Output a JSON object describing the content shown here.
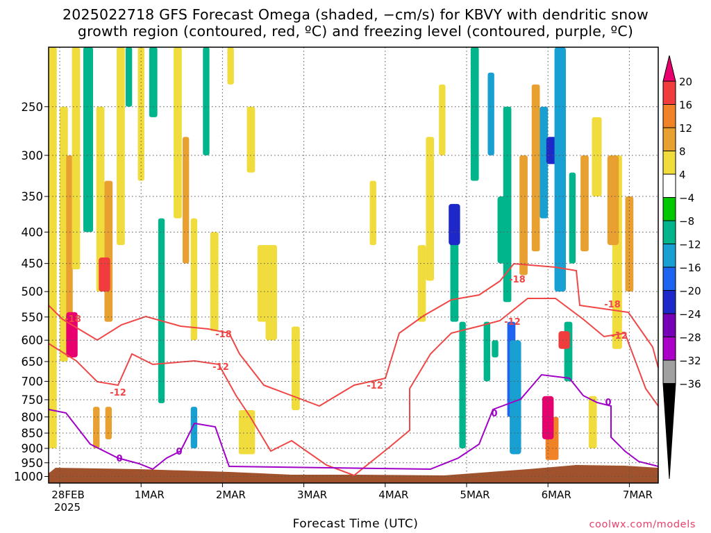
{
  "title": {
    "line1": "2025022718 GFS Forecast Omega (shaded, −cm/s) for KBVY with dendritic snow",
    "line2": "growth region (contoured, red, ºC) and freezing level (contoured, purple, ºC)"
  },
  "credit": "coolwx.com/models",
  "chart_data": {
    "type": "heatmap",
    "title": "2025022718 GFS Forecast Omega (shaded, −cm/s) for KBVY with dendritic snow growth region (contoured, red, ºC) and freezing level (contoured, purple, ºC)",
    "xlabel": "Forecast Time (UTC)",
    "ylabel": "",
    "x_ticks": [
      "28FEB",
      "1MAR",
      "2MAR",
      "3MAR",
      "4MAR",
      "5MAR",
      "6MAR",
      "7MAR"
    ],
    "x_tick_sublabel": "2025",
    "x_range_days": [
      -0.25,
      7.1
    ],
    "y_ticks": [
      250,
      300,
      350,
      400,
      450,
      500,
      550,
      600,
      650,
      700,
      750,
      800,
      850,
      900,
      950,
      1000
    ],
    "y_range_hpa": [
      200,
      1025
    ],
    "y_scale": "pressure (log)",
    "grid": "dotted",
    "colorbar": {
      "levels": [
        20,
        16,
        12,
        8,
        4,
        -4,
        -8,
        -12,
        -16,
        -20,
        -24,
        -28,
        -32,
        -36
      ],
      "colors": [
        "#e8006e",
        "#f03c3c",
        "#f08228",
        "#e8a030",
        "#f0dc3c",
        "#ffffff",
        "#00c800",
        "#00b48c",
        "#18a0d2",
        "#1e64f0",
        "#1e28c8",
        "#7800b4",
        "#aa00c8",
        "#a0a0a0",
        "#000000"
      ]
    },
    "contours": [
      {
        "name": "-18",
        "color": "#f04646",
        "labels": [
          "-18",
          "-18",
          "-18",
          "-18",
          "-18"
        ]
      },
      {
        "name": "-12",
        "color": "#f04646",
        "labels": [
          "-12",
          "-12",
          "-12",
          "-12",
          "-12"
        ]
      },
      {
        "name": "0",
        "color": "#a000c8",
        "labels": [
          "0",
          "0",
          "0",
          "0"
        ]
      }
    ],
    "terrain_color": "#a0522d",
    "omega_regions": [
      {
        "day": 0.15,
        "p_top": 540,
        "p_bot": 640,
        "value": 20
      },
      {
        "day": 0.55,
        "p_top": 440,
        "p_bot": 500,
        "value": 16
      },
      {
        "day": 6.0,
        "p_top": 740,
        "p_bot": 870,
        "value": 20
      },
      {
        "day": 6.2,
        "p_top": 580,
        "p_bot": 620,
        "value": 16
      },
      {
        "day": 4.85,
        "p_top": 360,
        "p_bot": 420,
        "value": -20
      },
      {
        "day": 6.05,
        "p_top": 280,
        "p_bot": 310,
        "value": -20
      },
      {
        "day": 5.6,
        "p_top": 600,
        "p_bot": 920,
        "value": -12
      },
      {
        "day": 6.15,
        "p_top": 200,
        "p_bot": 500,
        "value": -12
      },
      {
        "day": 5.45,
        "p_top": 350,
        "p_bot": 450,
        "value": -8
      },
      {
        "day": 2.6,
        "p_top": 450,
        "p_bot": 600,
        "value": 4
      },
      {
        "day": 6.8,
        "p_top": 300,
        "p_bot": 420,
        "value": 8
      }
    ]
  }
}
